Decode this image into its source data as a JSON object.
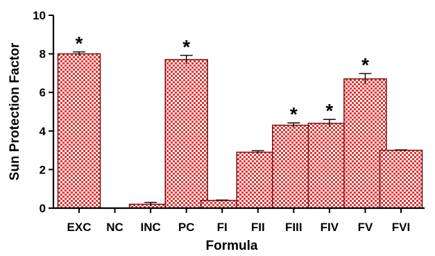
{
  "chart_data": {
    "type": "bar",
    "xlabel": "Formula",
    "ylabel": "Sun Protection Factor",
    "ylim": [
      0,
      10
    ],
    "yticks": [
      0,
      2,
      4,
      6,
      8,
      10
    ],
    "categories": [
      "EXC",
      "NC",
      "INC",
      "PC",
      "FI",
      "FII",
      "FIII",
      "FIV",
      "FV",
      "FVI"
    ],
    "values": [
      8.0,
      0,
      0.2,
      7.7,
      0.4,
      2.9,
      4.3,
      4.4,
      6.7,
      3.0
    ],
    "errors": [
      0.1,
      0,
      0.1,
      0.22,
      0.02,
      0.08,
      0.12,
      0.2,
      0.28,
      0.02
    ],
    "significance_marker": "*",
    "significant": [
      true,
      false,
      false,
      true,
      false,
      false,
      true,
      true,
      true,
      false
    ],
    "bar_pattern_colors": [
      "#e63232",
      "#ffffff"
    ],
    "bar_outline_color": "#7a0d0d",
    "grid": false
  }
}
